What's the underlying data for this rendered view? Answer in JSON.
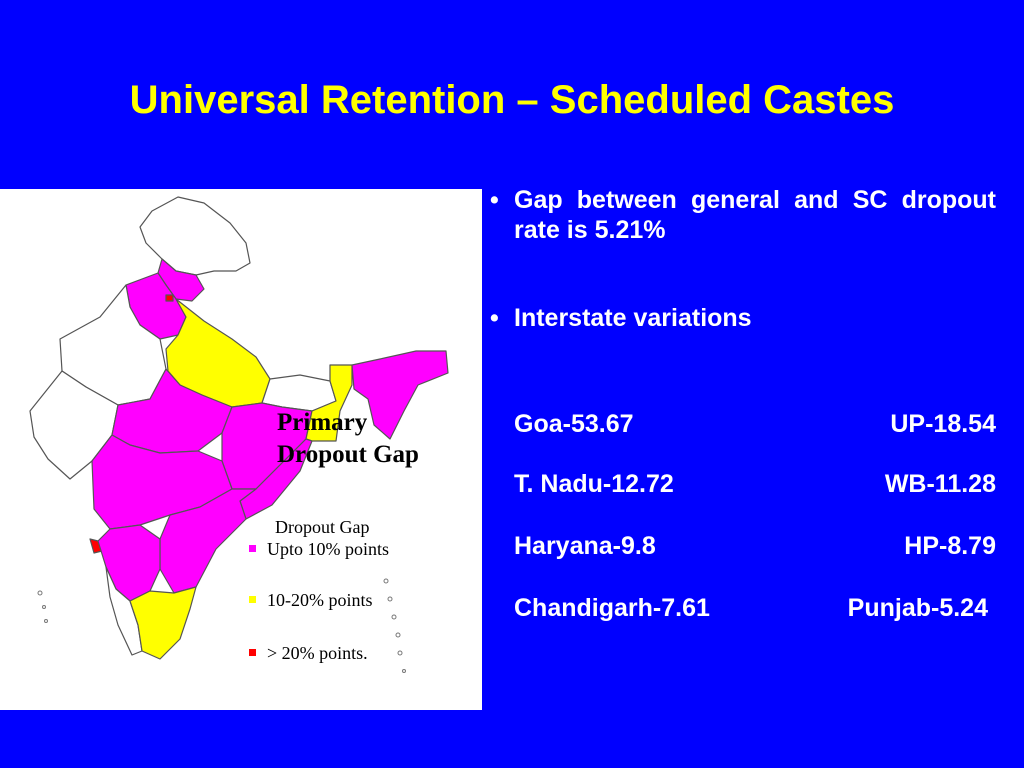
{
  "title": "Universal Retention – Scheduled Castes",
  "map": {
    "caption_line1": "Primary",
    "caption_line2": "Dropout Gap",
    "legend_title": "Dropout Gap",
    "legend": [
      {
        "label": "Upto 10% points",
        "color": "#ff00ff"
      },
      {
        "label": "10-20% points",
        "color": "#ffff00"
      },
      {
        "label": "> 20% points.",
        "color": "#ff0000"
      }
    ],
    "colors": {
      "upto10": "#ff00ff",
      "mid": "#ffff00",
      "high": "#ff0000",
      "none": "#ffffff"
    }
  },
  "bullets": [
    {
      "text": "Gap between general and SC dropout rate is 5.21%"
    },
    {
      "text": "Interstate variations"
    }
  ],
  "stats": [
    {
      "left": "Goa-53.67",
      "right": "UP-18.54"
    },
    {
      "left": "T. Nadu-12.72",
      "right": "WB-11.28"
    },
    {
      "left": "Haryana-9.8",
      "right": "HP-8.79"
    },
    {
      "left": "Chandigarh-7.61",
      "right": "Punjab-5.24"
    }
  ]
}
